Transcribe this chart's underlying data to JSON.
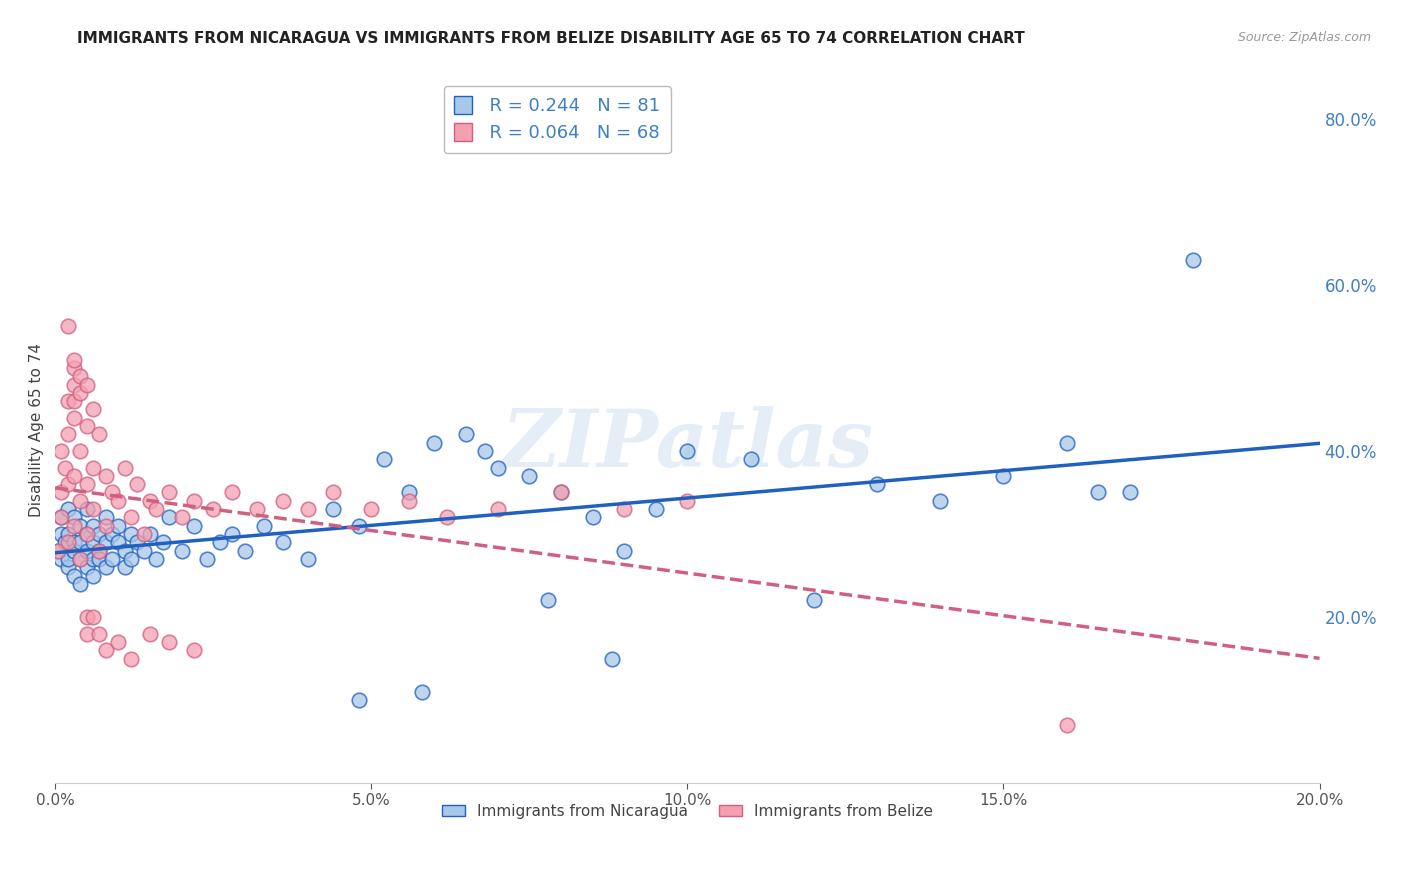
{
  "title": "IMMIGRANTS FROM NICARAGUA VS IMMIGRANTS FROM BELIZE DISABILITY AGE 65 TO 74 CORRELATION CHART",
  "source": "Source: ZipAtlas.com",
  "ylabel": "Disability Age 65 to 74",
  "legend_label1": "Immigrants from Nicaragua",
  "legend_label2": "Immigrants from Belize",
  "R1": 0.244,
  "N1": 81,
  "R2": 0.064,
  "N2": 68,
  "color1": "#a8c8e8",
  "color2": "#f4a0b0",
  "trendline_color1": "#2060c0",
  "trendline_color2": "#d06080",
  "watermark": "ZIPatlas",
  "xlim": [
    0.0,
    0.2
  ],
  "ylim": [
    0.0,
    0.85
  ],
  "xticks": [
    0.0,
    0.05,
    0.1,
    0.15,
    0.2
  ],
  "yticks_right": [
    0.2,
    0.4,
    0.6,
    0.8
  ],
  "background_color": "#ffffff",
  "grid_color": "#d0d8e8",
  "axis_color": "#4080c0",
  "title_fontsize": 11,
  "label_fontsize": 11,
  "scatter1_x": [
    0.0005,
    0.001,
    0.001,
    0.001,
    0.0015,
    0.002,
    0.002,
    0.002,
    0.002,
    0.003,
    0.003,
    0.003,
    0.003,
    0.004,
    0.004,
    0.004,
    0.004,
    0.005,
    0.005,
    0.005,
    0.005,
    0.006,
    0.006,
    0.006,
    0.006,
    0.007,
    0.007,
    0.007,
    0.008,
    0.008,
    0.008,
    0.009,
    0.009,
    0.01,
    0.01,
    0.011,
    0.011,
    0.012,
    0.012,
    0.013,
    0.014,
    0.015,
    0.016,
    0.017,
    0.018,
    0.02,
    0.022,
    0.024,
    0.026,
    0.028,
    0.03,
    0.033,
    0.036,
    0.04,
    0.044,
    0.048,
    0.052,
    0.056,
    0.06,
    0.065,
    0.07,
    0.075,
    0.08,
    0.085,
    0.09,
    0.095,
    0.1,
    0.11,
    0.12,
    0.13,
    0.14,
    0.15,
    0.16,
    0.17,
    0.048,
    0.058,
    0.068,
    0.078,
    0.088,
    0.165,
    0.18
  ],
  "scatter1_y": [
    0.28,
    0.3,
    0.27,
    0.32,
    0.29,
    0.26,
    0.3,
    0.33,
    0.27,
    0.25,
    0.29,
    0.32,
    0.28,
    0.27,
    0.31,
    0.29,
    0.24,
    0.28,
    0.3,
    0.26,
    0.33,
    0.27,
    0.31,
    0.29,
    0.25,
    0.28,
    0.3,
    0.27,
    0.26,
    0.29,
    0.32,
    0.27,
    0.3,
    0.29,
    0.31,
    0.28,
    0.26,
    0.3,
    0.27,
    0.29,
    0.28,
    0.3,
    0.27,
    0.29,
    0.32,
    0.28,
    0.31,
    0.27,
    0.29,
    0.3,
    0.28,
    0.31,
    0.29,
    0.27,
    0.33,
    0.31,
    0.39,
    0.35,
    0.41,
    0.42,
    0.38,
    0.37,
    0.35,
    0.32,
    0.28,
    0.33,
    0.4,
    0.39,
    0.22,
    0.36,
    0.34,
    0.37,
    0.41,
    0.35,
    0.1,
    0.11,
    0.4,
    0.22,
    0.15,
    0.35,
    0.63
  ],
  "scatter2_x": [
    0.0005,
    0.001,
    0.001,
    0.001,
    0.0015,
    0.002,
    0.002,
    0.002,
    0.003,
    0.003,
    0.003,
    0.003,
    0.004,
    0.004,
    0.004,
    0.005,
    0.005,
    0.005,
    0.006,
    0.006,
    0.007,
    0.007,
    0.008,
    0.008,
    0.009,
    0.01,
    0.011,
    0.012,
    0.013,
    0.014,
    0.015,
    0.016,
    0.018,
    0.02,
    0.022,
    0.025,
    0.028,
    0.032,
    0.036,
    0.04,
    0.044,
    0.05,
    0.056,
    0.062,
    0.07,
    0.08,
    0.09,
    0.1,
    0.002,
    0.003,
    0.003,
    0.004,
    0.005,
    0.005,
    0.006,
    0.007,
    0.008,
    0.01,
    0.012,
    0.015,
    0.018,
    0.022,
    0.002,
    0.003,
    0.004,
    0.005,
    0.006,
    0.16
  ],
  "scatter2_y": [
    0.28,
    0.35,
    0.4,
    0.32,
    0.38,
    0.42,
    0.36,
    0.29,
    0.44,
    0.37,
    0.31,
    0.48,
    0.34,
    0.4,
    0.27,
    0.36,
    0.43,
    0.3,
    0.38,
    0.33,
    0.42,
    0.28,
    0.37,
    0.31,
    0.35,
    0.34,
    0.38,
    0.32,
    0.36,
    0.3,
    0.34,
    0.33,
    0.35,
    0.32,
    0.34,
    0.33,
    0.35,
    0.33,
    0.34,
    0.33,
    0.35,
    0.33,
    0.34,
    0.32,
    0.33,
    0.35,
    0.33,
    0.34,
    0.46,
    0.46,
    0.5,
    0.47,
    0.2,
    0.18,
    0.2,
    0.18,
    0.16,
    0.17,
    0.15,
    0.18,
    0.17,
    0.16,
    0.55,
    0.51,
    0.49,
    0.48,
    0.45,
    0.07
  ]
}
